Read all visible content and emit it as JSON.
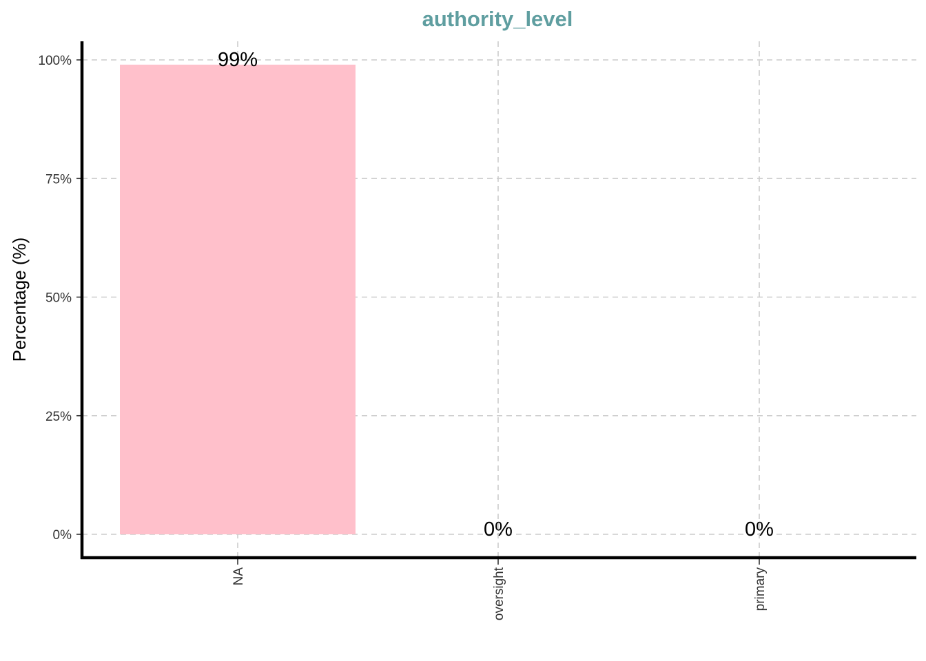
{
  "chart_data": {
    "type": "bar",
    "title": "authority_level",
    "xlabel": "",
    "ylabel": "Percentage (%)",
    "categories": [
      "NA",
      "oversight",
      "primary"
    ],
    "values": [
      99,
      0,
      0
    ],
    "data_labels": [
      "99%",
      "0%",
      "0%"
    ],
    "ylim": [
      0,
      100
    ],
    "yticks": [
      0,
      25,
      50,
      75,
      100
    ],
    "ytick_labels": [
      "0%",
      "25%",
      "50%",
      "75%",
      "100%"
    ],
    "grid": true,
    "legend": "none"
  },
  "colors": {
    "title": "#5f9ea0",
    "bar": "#ffc0cb"
  }
}
